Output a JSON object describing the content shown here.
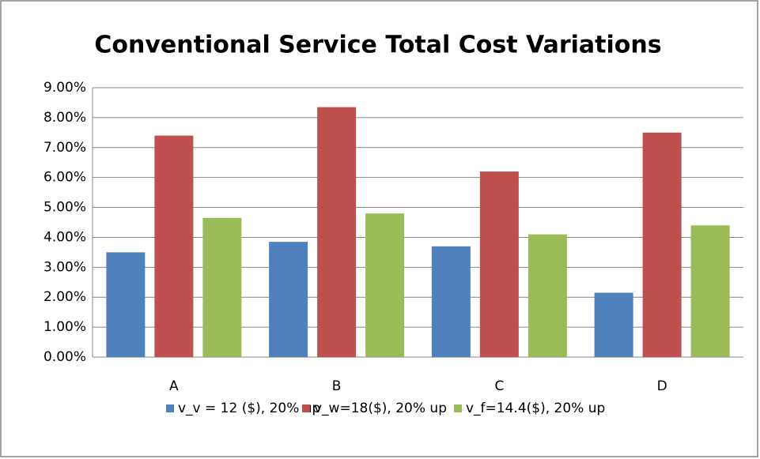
{
  "chart_data": {
    "type": "bar",
    "title": "Conventional Service Total Cost Variations",
    "categories": [
      "A",
      "B",
      "C",
      "D"
    ],
    "series": [
      {
        "name": "v_v = 12 ($), 20% up",
        "color": "#4f81bd",
        "values": [
          3.5,
          3.85,
          3.7,
          2.15
        ]
      },
      {
        "name": "v_w=18($), 20% up",
        "color": "#c0504d",
        "values": [
          7.4,
          8.35,
          6.2,
          7.5
        ]
      },
      {
        "name": "v_f=14.4($), 20% up",
        "color": "#9bbb59",
        "values": [
          4.65,
          4.8,
          4.1,
          4.4
        ]
      }
    ],
    "ylim": [
      0,
      9
    ],
    "yticks": [
      {
        "value": 0,
        "label": "0.00%"
      },
      {
        "value": 1,
        "label": "1.00%"
      },
      {
        "value": 2,
        "label": "2.00%"
      },
      {
        "value": 3,
        "label": "3.00%"
      },
      {
        "value": 4,
        "label": "4.00%"
      },
      {
        "value": 5,
        "label": "5.00%"
      },
      {
        "value": 6,
        "label": "6.00%"
      },
      {
        "value": 7,
        "label": "7.00%"
      },
      {
        "value": 8,
        "label": "8.00%"
      },
      {
        "value": 9,
        "label": "9.00%"
      }
    ],
    "grid": true,
    "legend": "bottom"
  }
}
